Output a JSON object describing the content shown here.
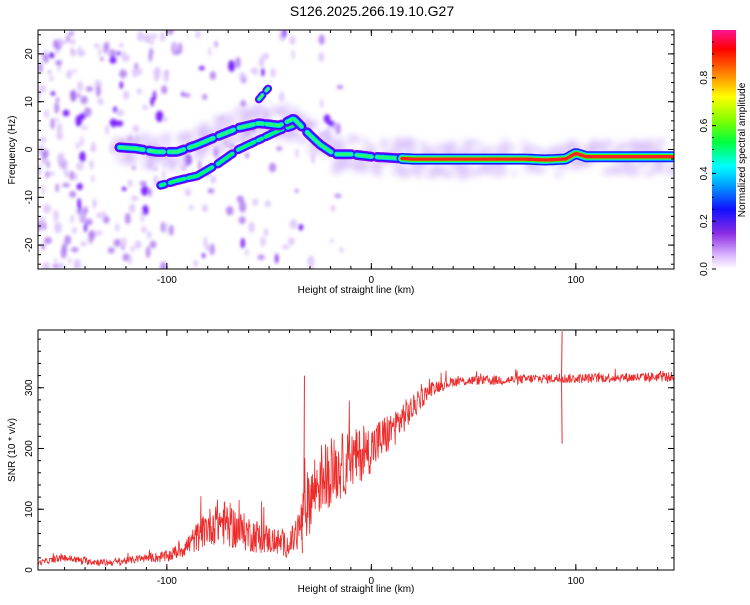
{
  "page_title": "S126.2025.266.19.10.G27",
  "colorbar": {
    "label": "Normalized spectral amplitude",
    "ticks": [
      "0.0",
      "0.2",
      "0.4",
      "0.6",
      "0.8"
    ],
    "range": [
      0,
      1
    ]
  },
  "chart_data": [
    {
      "type": "heatmap",
      "title": "",
      "xlabel": "Height of straight line (km)",
      "ylabel": "Frequency (Hz)",
      "xlim": [
        -163,
        148
      ],
      "ylim": [
        -25,
        25
      ],
      "xticks": [
        -100,
        0,
        100
      ],
      "xtick_labels": [
        "-100",
        "0",
        "100"
      ],
      "yticks": [
        -20,
        -10,
        0,
        10,
        20
      ],
      "ytick_labels": [
        "-20",
        "-10",
        "0",
        "10",
        "20"
      ],
      "ridge": {
        "x": [
          -125,
          -115,
          -105,
          -95,
          -85,
          -75,
          -65,
          -55,
          -45,
          -38,
          -30,
          -25,
          -18,
          -10,
          0,
          20,
          40,
          60,
          75,
          85,
          95,
          100,
          105,
          148
        ],
        "y": [
          0.5,
          0.2,
          -0.5,
          -0.5,
          1.0,
          2.8,
          4.5,
          5.5,
          5.0,
          6.5,
          3.0,
          1.0,
          -1.0,
          -1.0,
          -1.5,
          -2.0,
          -2.0,
          -2.0,
          -2.0,
          -2.2,
          -2.0,
          -0.8,
          -1.5,
          -1.5
        ]
      },
      "ridge_secondary": {
        "x": [
          -103,
          -95,
          -85,
          -75,
          -65,
          -55,
          -45,
          -38
        ],
        "y": [
          -7.5,
          -6.5,
          -5.5,
          -3.0,
          0.0,
          2.0,
          4.0,
          5.0
        ]
      },
      "upper_branch": {
        "x": [
          -55,
          -50
        ],
        "y": [
          10.5,
          13.0
        ]
      }
    },
    {
      "type": "line",
      "title": "",
      "xlabel": "Height of straight line (km)",
      "ylabel": "SNR (10 * v/v)",
      "xlim": [
        -163,
        148
      ],
      "ylim": [
        0,
        395
      ],
      "xticks": [
        -100,
        0,
        100
      ],
      "xtick_labels": [
        "-100",
        "0",
        "100"
      ],
      "yticks": [
        0,
        100,
        200,
        300
      ],
      "ytick_labels": [
        "0",
        "100",
        "200",
        "300"
      ],
      "series": [
        {
          "name": "SNR",
          "color": "#ee2b2b",
          "x": [
            -163,
            -150,
            -140,
            -130,
            -120,
            -110,
            -100,
            -95,
            -90,
            -85,
            -80,
            -75,
            -70,
            -65,
            -60,
            -55,
            -50,
            -45,
            -40,
            -35,
            -30,
            -25,
            -20,
            -15,
            -10,
            -5,
            0,
            5,
            10,
            15,
            20,
            25,
            30,
            35,
            40,
            50,
            60,
            70,
            80,
            90,
            100,
            110,
            120,
            130,
            140,
            148
          ],
          "y": [
            12,
            20,
            15,
            12,
            15,
            20,
            22,
            30,
            40,
            55,
            70,
            80,
            75,
            65,
            60,
            55,
            50,
            45,
            40,
            70,
            120,
            150,
            160,
            170,
            180,
            190,
            200,
            215,
            230,
            250,
            265,
            285,
            300,
            305,
            310,
            312,
            312,
            313,
            315,
            315,
            315,
            316,
            317,
            317,
            318,
            318
          ],
          "noise": [
            4,
            6,
            6,
            6,
            6,
            7,
            10,
            12,
            18,
            25,
            30,
            38,
            38,
            34,
            30,
            28,
            24,
            22,
            20,
            40,
            60,
            60,
            55,
            55,
            50,
            45,
            40,
            38,
            32,
            28,
            22,
            16,
            12,
            10,
            8,
            8,
            8,
            8,
            8,
            8,
            8,
            8,
            8,
            8,
            8,
            8
          ]
        }
      ],
      "spikes": [
        {
          "x": -33,
          "y": 320
        },
        {
          "x": -34,
          "y": 28
        },
        {
          "x": 93,
          "y": 393
        },
        {
          "x": 93,
          "y": 208
        }
      ]
    }
  ]
}
